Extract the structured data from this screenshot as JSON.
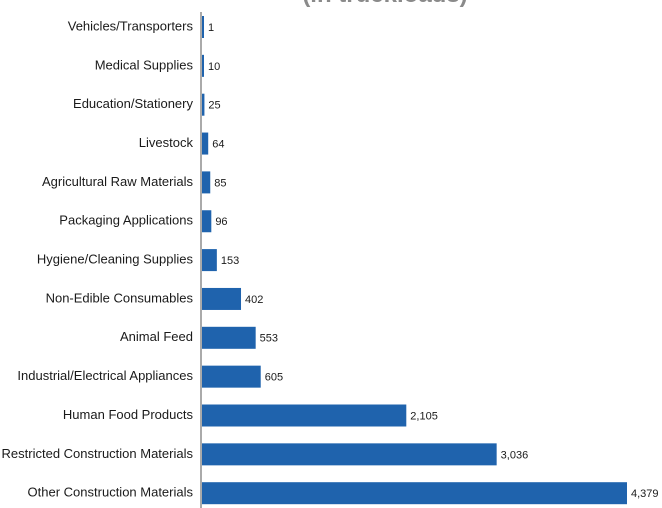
{
  "chart_data": {
    "type": "bar",
    "orientation": "horizontal",
    "title": "(in truckloads)",
    "categories": [
      "Vehicles/Transporters",
      "Medical Supplies",
      "Education/Stationery",
      "Livestock",
      "Agricultural Raw Materials",
      "Packaging Applications",
      "Hygiene/Cleaning Supplies",
      "Non-Edible Consumables",
      "Animal Feed",
      "Industrial/Electrical Appliances",
      "Human Food Products",
      "Restricted Construction Materials",
      "Other Construction Materials"
    ],
    "values": [
      1,
      10,
      25,
      64,
      85,
      96,
      153,
      402,
      553,
      605,
      2105,
      3036,
      4379
    ],
    "value_labels": [
      "1",
      "10",
      "25",
      "64",
      "85",
      "96",
      "153",
      "402",
      "553",
      "605",
      "2,105",
      "3,036",
      "4,379"
    ],
    "bar_color": "#1f63ad",
    "xlim": [
      0,
      4379
    ],
    "grid": false,
    "legend": "none"
  }
}
